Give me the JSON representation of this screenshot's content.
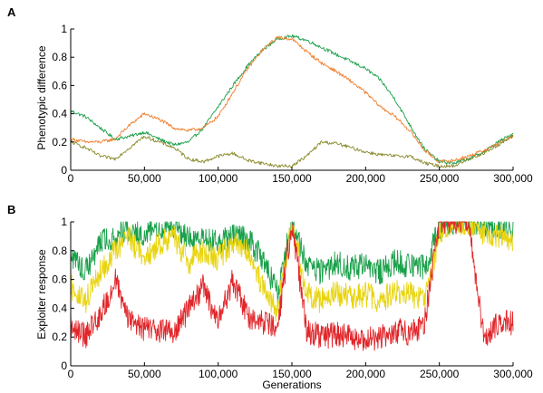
{
  "chart_data": [
    {
      "panel": "A",
      "type": "line",
      "title": "",
      "xlabel": "",
      "ylabel": "Phenotypic difference",
      "xlim": [
        0,
        300000
      ],
      "ylim": [
        0,
        1
      ],
      "x_ticks": [
        0,
        50000,
        100000,
        150000,
        200000,
        250000,
        300000
      ],
      "x_tick_labels": [
        "0",
        "50,000",
        "100,000",
        "150,000",
        "200,000",
        "250,000",
        "300,000"
      ],
      "y_ticks": [
        0,
        0.2,
        0.4,
        0.6,
        0.8,
        1
      ],
      "y_tick_labels": [
        "0",
        "0.2",
        "0.4",
        "0.6",
        "0.8",
        "1"
      ],
      "grid": false,
      "legend": "none",
      "series": [
        {
          "color": "#1aa04a",
          "x": [
            0,
            10000,
            20000,
            30000,
            40000,
            50000,
            60000,
            70000,
            80000,
            90000,
            100000,
            110000,
            120000,
            130000,
            140000,
            150000,
            160000,
            170000,
            180000,
            190000,
            200000,
            210000,
            220000,
            230000,
            240000,
            250000,
            260000,
            270000,
            280000,
            290000,
            300000
          ],
          "y": [
            0.42,
            0.38,
            0.3,
            0.22,
            0.24,
            0.27,
            0.22,
            0.18,
            0.2,
            0.3,
            0.45,
            0.6,
            0.74,
            0.85,
            0.93,
            0.95,
            0.92,
            0.87,
            0.82,
            0.77,
            0.72,
            0.64,
            0.5,
            0.32,
            0.15,
            0.06,
            0.05,
            0.08,
            0.13,
            0.2,
            0.26
          ]
        },
        {
          "color": "#f07f2e",
          "x": [
            0,
            10000,
            20000,
            30000,
            40000,
            50000,
            60000,
            70000,
            80000,
            90000,
            100000,
            110000,
            120000,
            130000,
            140000,
            150000,
            160000,
            170000,
            180000,
            190000,
            200000,
            210000,
            220000,
            230000,
            240000,
            250000,
            260000,
            270000,
            280000,
            290000,
            300000
          ],
          "y": [
            0.22,
            0.2,
            0.2,
            0.22,
            0.32,
            0.4,
            0.36,
            0.3,
            0.28,
            0.3,
            0.38,
            0.55,
            0.72,
            0.85,
            0.94,
            0.93,
            0.84,
            0.76,
            0.7,
            0.63,
            0.55,
            0.45,
            0.38,
            0.28,
            0.14,
            0.06,
            0.07,
            0.1,
            0.14,
            0.19,
            0.24
          ]
        },
        {
          "color": "#8a8a2a",
          "x": [
            0,
            10000,
            20000,
            30000,
            40000,
            50000,
            60000,
            70000,
            80000,
            90000,
            100000,
            110000,
            120000,
            130000,
            140000,
            150000,
            160000,
            170000,
            180000,
            190000,
            200000,
            210000,
            220000,
            230000,
            240000,
            250000,
            260000,
            270000,
            280000,
            290000,
            300000
          ],
          "y": [
            0.2,
            0.16,
            0.1,
            0.08,
            0.16,
            0.24,
            0.2,
            0.16,
            0.08,
            0.06,
            0.1,
            0.12,
            0.07,
            0.05,
            0.03,
            0.03,
            0.1,
            0.2,
            0.19,
            0.16,
            0.13,
            0.11,
            0.1,
            0.1,
            0.05,
            0.03,
            0.03,
            0.08,
            0.12,
            0.18,
            0.24
          ]
        }
      ]
    },
    {
      "panel": "B",
      "type": "line",
      "title": "",
      "xlabel": "Generations",
      "ylabel": "Exploiter response",
      "xlim": [
        0,
        300000
      ],
      "ylim": [
        0,
        1
      ],
      "x_ticks": [
        0,
        50000,
        100000,
        150000,
        200000,
        250000,
        300000
      ],
      "x_tick_labels": [
        "0",
        "50,000",
        "100,000",
        "150,000",
        "200,000",
        "250,000",
        "300,000"
      ],
      "y_ticks": [
        0,
        0.2,
        0.4,
        0.6,
        0.8,
        1
      ],
      "y_tick_labels": [
        "0",
        "0.2",
        "0.4",
        "0.6",
        "0.8",
        "1"
      ],
      "grid": false,
      "legend": "none",
      "series": [
        {
          "color": "#1aa04a",
          "x": [
            0,
            10000,
            20000,
            30000,
            40000,
            50000,
            60000,
            70000,
            80000,
            90000,
            100000,
            110000,
            120000,
            130000,
            140000,
            150000,
            160000,
            170000,
            180000,
            190000,
            200000,
            210000,
            220000,
            230000,
            240000,
            250000,
            260000,
            270000,
            280000,
            290000,
            300000
          ],
          "y": [
            0.75,
            0.65,
            0.85,
            0.9,
            0.95,
            0.92,
            0.95,
            0.97,
            0.88,
            0.9,
            0.85,
            0.9,
            0.88,
            0.75,
            0.5,
            1.0,
            0.7,
            0.65,
            0.72,
            0.68,
            0.7,
            0.65,
            0.72,
            0.7,
            0.68,
            0.95,
            1.0,
            1.0,
            0.98,
            0.97,
            0.95
          ]
        },
        {
          "color": "#e8d40e",
          "x": [
            0,
            10000,
            20000,
            30000,
            40000,
            50000,
            60000,
            70000,
            80000,
            90000,
            100000,
            110000,
            120000,
            130000,
            140000,
            150000,
            160000,
            170000,
            180000,
            190000,
            200000,
            210000,
            220000,
            230000,
            240000,
            250000,
            260000,
            270000,
            280000,
            290000,
            300000
          ],
          "y": [
            0.55,
            0.45,
            0.65,
            0.8,
            0.88,
            0.75,
            0.85,
            0.9,
            0.72,
            0.8,
            0.75,
            0.85,
            0.8,
            0.55,
            0.38,
            1.0,
            0.5,
            0.45,
            0.5,
            0.48,
            0.5,
            0.45,
            0.52,
            0.5,
            0.45,
            0.9,
            1.0,
            1.0,
            0.92,
            0.9,
            0.88
          ]
        },
        {
          "color": "#e0262a",
          "x": [
            0,
            10000,
            20000,
            30000,
            40000,
            50000,
            60000,
            70000,
            80000,
            90000,
            100000,
            110000,
            120000,
            130000,
            140000,
            150000,
            160000,
            170000,
            180000,
            190000,
            200000,
            210000,
            220000,
            230000,
            240000,
            250000,
            260000,
            270000,
            280000,
            290000,
            300000
          ],
          "y": [
            0.3,
            0.2,
            0.35,
            0.6,
            0.3,
            0.25,
            0.25,
            0.22,
            0.4,
            0.55,
            0.3,
            0.6,
            0.35,
            0.3,
            0.25,
            1.0,
            0.25,
            0.2,
            0.22,
            0.2,
            0.18,
            0.2,
            0.25,
            0.22,
            0.3,
            1.0,
            1.0,
            1.0,
            0.2,
            0.3,
            0.3
          ]
        }
      ]
    }
  ]
}
